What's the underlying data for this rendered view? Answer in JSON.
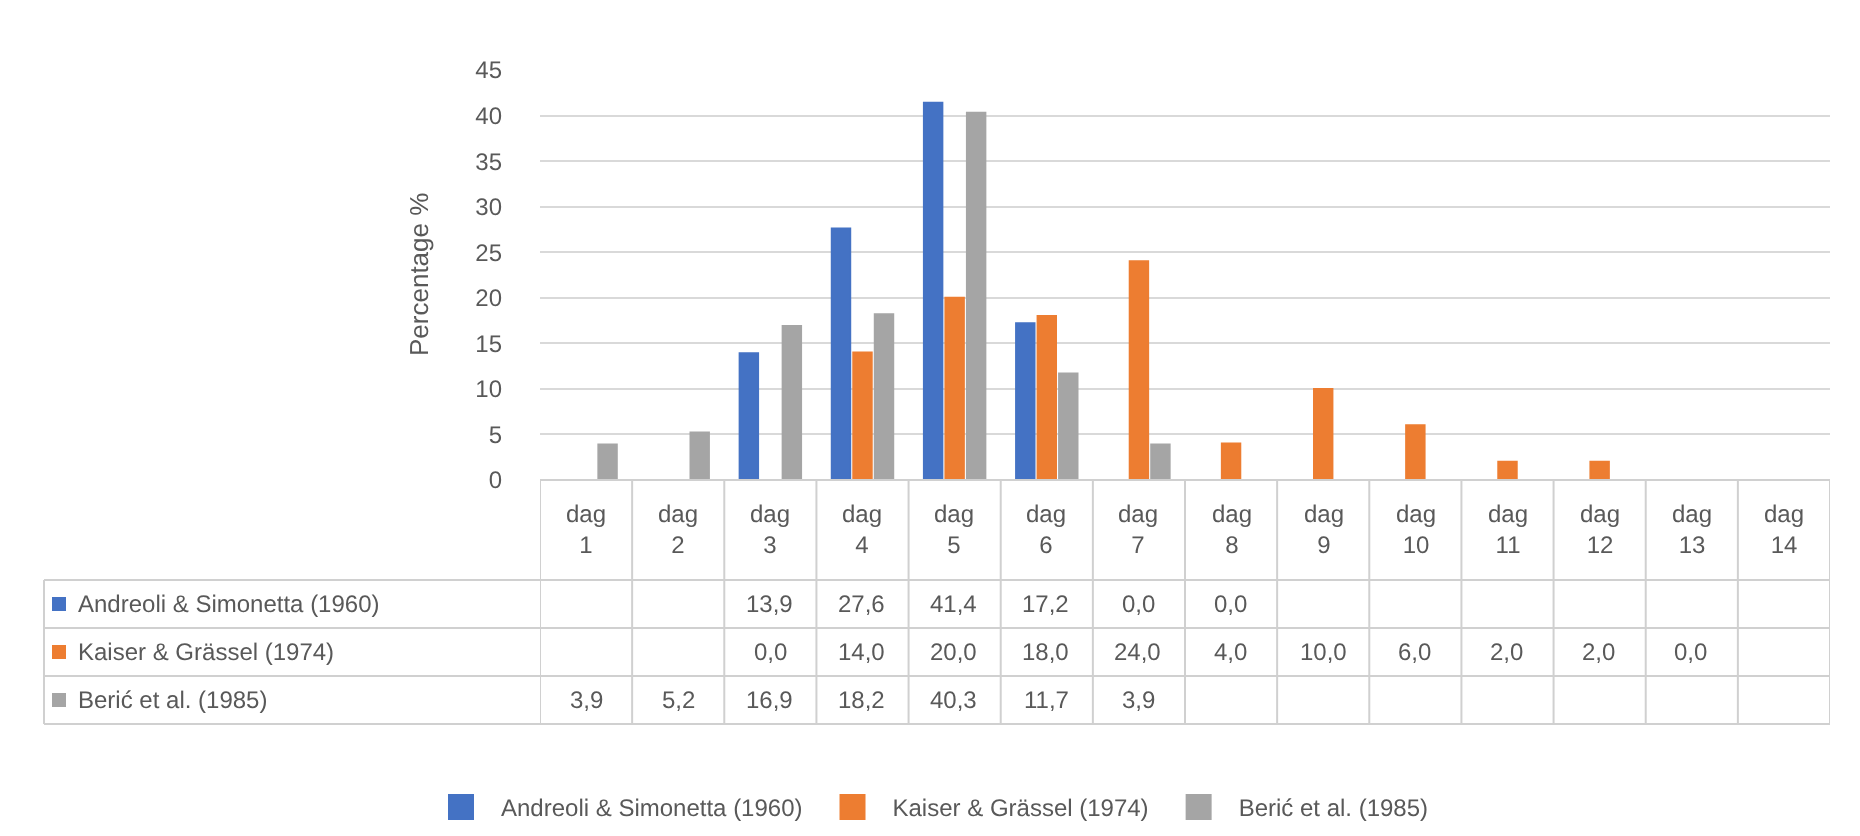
{
  "chart_data": {
    "type": "bar",
    "ylabel": "Percentage %",
    "categories": [
      "dag 1",
      "dag 2",
      "dag 3",
      "dag 4",
      "dag 5",
      "dag 6",
      "dag 7",
      "dag 8",
      "dag 9",
      "dag 10",
      "dag 11",
      "dag 12",
      "dag 13",
      "dag 14"
    ],
    "series": [
      {
        "name": "Andreoli & Simonetta (1960)",
        "color": "#4472c4",
        "values": [
          null,
          null,
          13.9,
          27.6,
          41.4,
          17.2,
          0.0,
          0.0,
          null,
          null,
          null,
          null,
          null,
          null
        ],
        "value_labels": [
          null,
          null,
          "13,9",
          "27,6",
          "41,4",
          "17,2",
          "0,0",
          "0,0",
          null,
          null,
          null,
          null,
          null,
          null
        ]
      },
      {
        "name": "Kaiser & Grässel (1974)",
        "color": "#ed7d31",
        "values": [
          null,
          null,
          0.0,
          14.0,
          20.0,
          18.0,
          24.0,
          4.0,
          10.0,
          6.0,
          2.0,
          2.0,
          0.0,
          null
        ],
        "value_labels": [
          null,
          null,
          "0,0",
          "14,0",
          "20,0",
          "18,0",
          "24,0",
          "4,0",
          "10,0",
          "6,0",
          "2,0",
          "2,0",
          "0,0",
          null
        ]
      },
      {
        "name": "Berić et al. (1985)",
        "color": "#a5a5a5",
        "values": [
          3.9,
          5.2,
          16.9,
          18.2,
          40.3,
          11.7,
          3.9,
          null,
          null,
          null,
          null,
          null,
          null,
          null
        ],
        "value_labels": [
          "3,9",
          "5,2",
          "16,9",
          "18,2",
          "40,3",
          "11,7",
          "3,9",
          null,
          null,
          null,
          null,
          null,
          null,
          null
        ]
      }
    ],
    "ylim": [
      0,
      45
    ],
    "yticks": [
      0,
      5,
      10,
      15,
      20,
      25,
      30,
      35,
      40,
      45
    ],
    "grid": "y",
    "legend": "bottom"
  }
}
